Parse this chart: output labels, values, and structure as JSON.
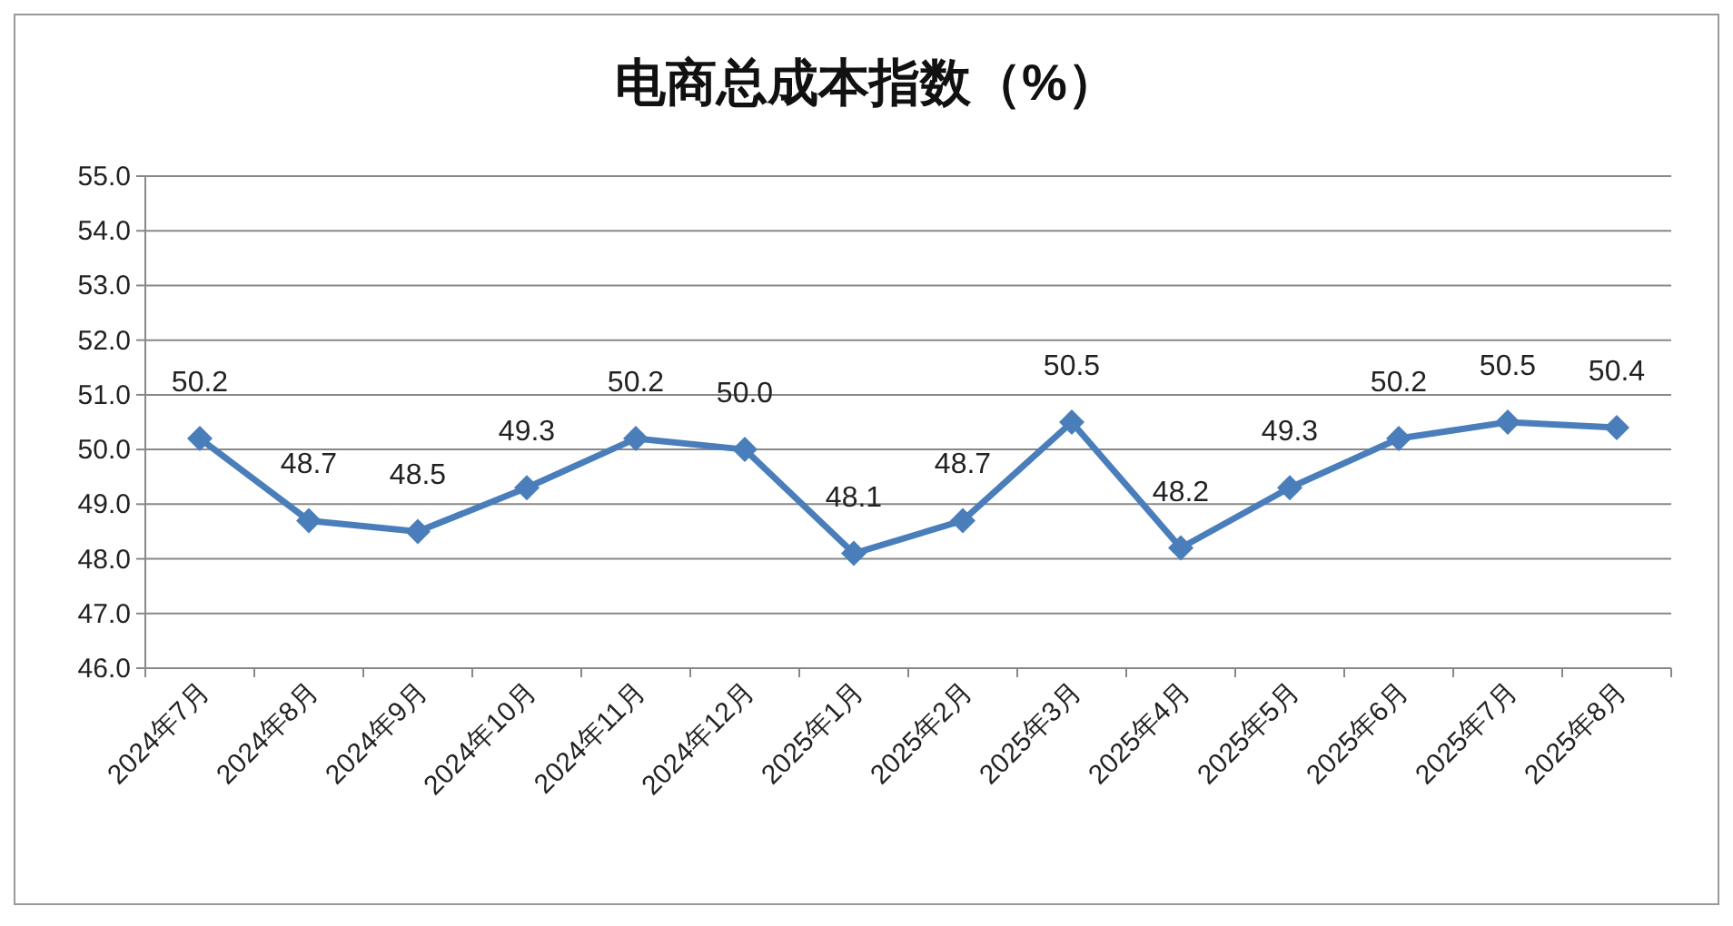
{
  "chart_data": {
    "type": "line",
    "title": "电商总成本指数（%）",
    "categories": [
      "2024年7月",
      "2024年8月",
      "2024年9月",
      "2024年10月",
      "2024年11月",
      "2024年12月",
      "2025年1月",
      "2025年2月",
      "2025年3月",
      "2025年4月",
      "2025年5月",
      "2025年6月",
      "2025年7月",
      "2025年8月"
    ],
    "series": [
      {
        "color": "#4a7ebb",
        "values": [
          50.2,
          48.7,
          48.5,
          49.3,
          50.2,
          50.0,
          48.1,
          48.7,
          50.5,
          48.2,
          49.3,
          50.2,
          50.5,
          50.4
        ],
        "value_labels": [
          "50.2",
          "48.7",
          "48.5",
          "49.3",
          "50.2",
          "50.0",
          "48.1",
          "48.7",
          "50.5",
          "48.2",
          "49.3",
          "50.2",
          "50.5",
          "50.4"
        ]
      }
    ],
    "ylim": [
      46,
      55
    ],
    "yticks": [
      {
        "value": 46,
        "label": "46.0"
      },
      {
        "value": 47,
        "label": "47.0"
      },
      {
        "value": 48,
        "label": "48.0"
      },
      {
        "value": 49,
        "label": "49.0"
      },
      {
        "value": 50,
        "label": "50.0"
      },
      {
        "value": 51,
        "label": "51.0"
      },
      {
        "value": 52,
        "label": "52.0"
      },
      {
        "value": 53,
        "label": "53.0"
      },
      {
        "value": 54,
        "label": "54.0"
      },
      {
        "value": 55,
        "label": "55.0"
      }
    ],
    "grid": "y",
    "marker": "diamond",
    "line_style": "solid"
  }
}
